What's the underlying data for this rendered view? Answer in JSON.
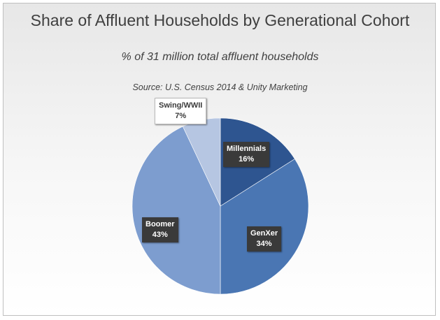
{
  "chart_data": {
    "type": "pie",
    "title": "Share of Affluent Households by Generational Cohort",
    "subtitle": "% of 31 million total affluent households",
    "source": "Source:  U.S. Census 2014 & Unity Marketing",
    "slices": [
      {
        "name": "Millennials",
        "value": 16,
        "label": "16%",
        "color": "#2e5590"
      },
      {
        "name": "GenXer",
        "value": 34,
        "label": "34%",
        "color": "#4a76b3"
      },
      {
        "name": "Boomer",
        "value": 43,
        "label": "43%",
        "color": "#7d9dcf"
      },
      {
        "name": "Swing/WWII",
        "value": 7,
        "label": "7%",
        "color": "#b6c6e2"
      }
    ]
  }
}
